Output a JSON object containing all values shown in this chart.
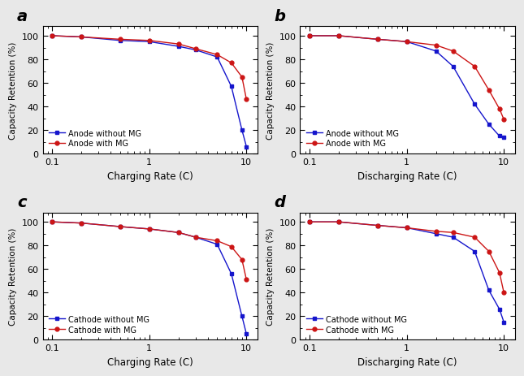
{
  "subplots": [
    {
      "label": "a",
      "xlabel": "Charging Rate (C)",
      "ylabel": "Capacity Retention (%)",
      "legend1": "Anode without MG",
      "legend2": "Anode with MG",
      "x": [
        0.1,
        0.2,
        0.5,
        1,
        2,
        3,
        5,
        7,
        9,
        10
      ],
      "y_blue": [
        100,
        99,
        96,
        95,
        91,
        88,
        82,
        57,
        20,
        6
      ],
      "y_red": [
        100,
        99,
        97,
        96,
        93,
        89,
        84,
        77,
        65,
        46
      ]
    },
    {
      "label": "b",
      "xlabel": "Discharging Rate (C)",
      "ylabel": "Capacity Retention (%)",
      "legend1": "Anode without MG",
      "legend2": "Anode with MG",
      "x": [
        0.1,
        0.2,
        0.5,
        1,
        2,
        3,
        5,
        7,
        9,
        10
      ],
      "y_blue": [
        100,
        100,
        97,
        95,
        87,
        74,
        42,
        25,
        15,
        14
      ],
      "y_red": [
        100,
        100,
        97,
        95,
        92,
        87,
        74,
        54,
        38,
        29
      ]
    },
    {
      "label": "c",
      "xlabel": "Charging Rate (C)",
      "ylabel": "Capacity Retention (%)",
      "legend1": "Cathode without MG",
      "legend2": "Cathode with MG",
      "x": [
        0.1,
        0.2,
        0.5,
        1,
        2,
        3,
        5,
        7,
        9,
        10
      ],
      "y_blue": [
        100,
        99,
        96,
        94,
        91,
        87,
        81,
        56,
        20,
        5
      ],
      "y_red": [
        100,
        99,
        96,
        94,
        91,
        87,
        84,
        79,
        68,
        51
      ]
    },
    {
      "label": "d",
      "xlabel": "Discharging Rate (C)",
      "ylabel": "Capacity Retention (%)",
      "legend1": "Cathode without MG",
      "legend2": "Cathode with MG",
      "x": [
        0.1,
        0.2,
        0.5,
        1,
        2,
        3,
        5,
        7,
        9,
        10
      ],
      "y_blue": [
        100,
        100,
        97,
        95,
        90,
        87,
        75,
        42,
        26,
        15
      ],
      "y_red": [
        100,
        100,
        97,
        95,
        92,
        91,
        87,
        75,
        57,
        40
      ]
    }
  ],
  "blue_color": "#1515CC",
  "red_color": "#CC1515",
  "bg_color": "#ffffff",
  "fig_bg_color": "#e8e8e8",
  "ylim": [
    0,
    108
  ],
  "yticks": [
    0,
    20,
    40,
    60,
    80,
    100
  ],
  "xlim_log": [
    0.08,
    13
  ],
  "xticks": [
    0.1,
    1,
    10
  ],
  "xticklabels": [
    "0.1",
    "1",
    "10"
  ]
}
